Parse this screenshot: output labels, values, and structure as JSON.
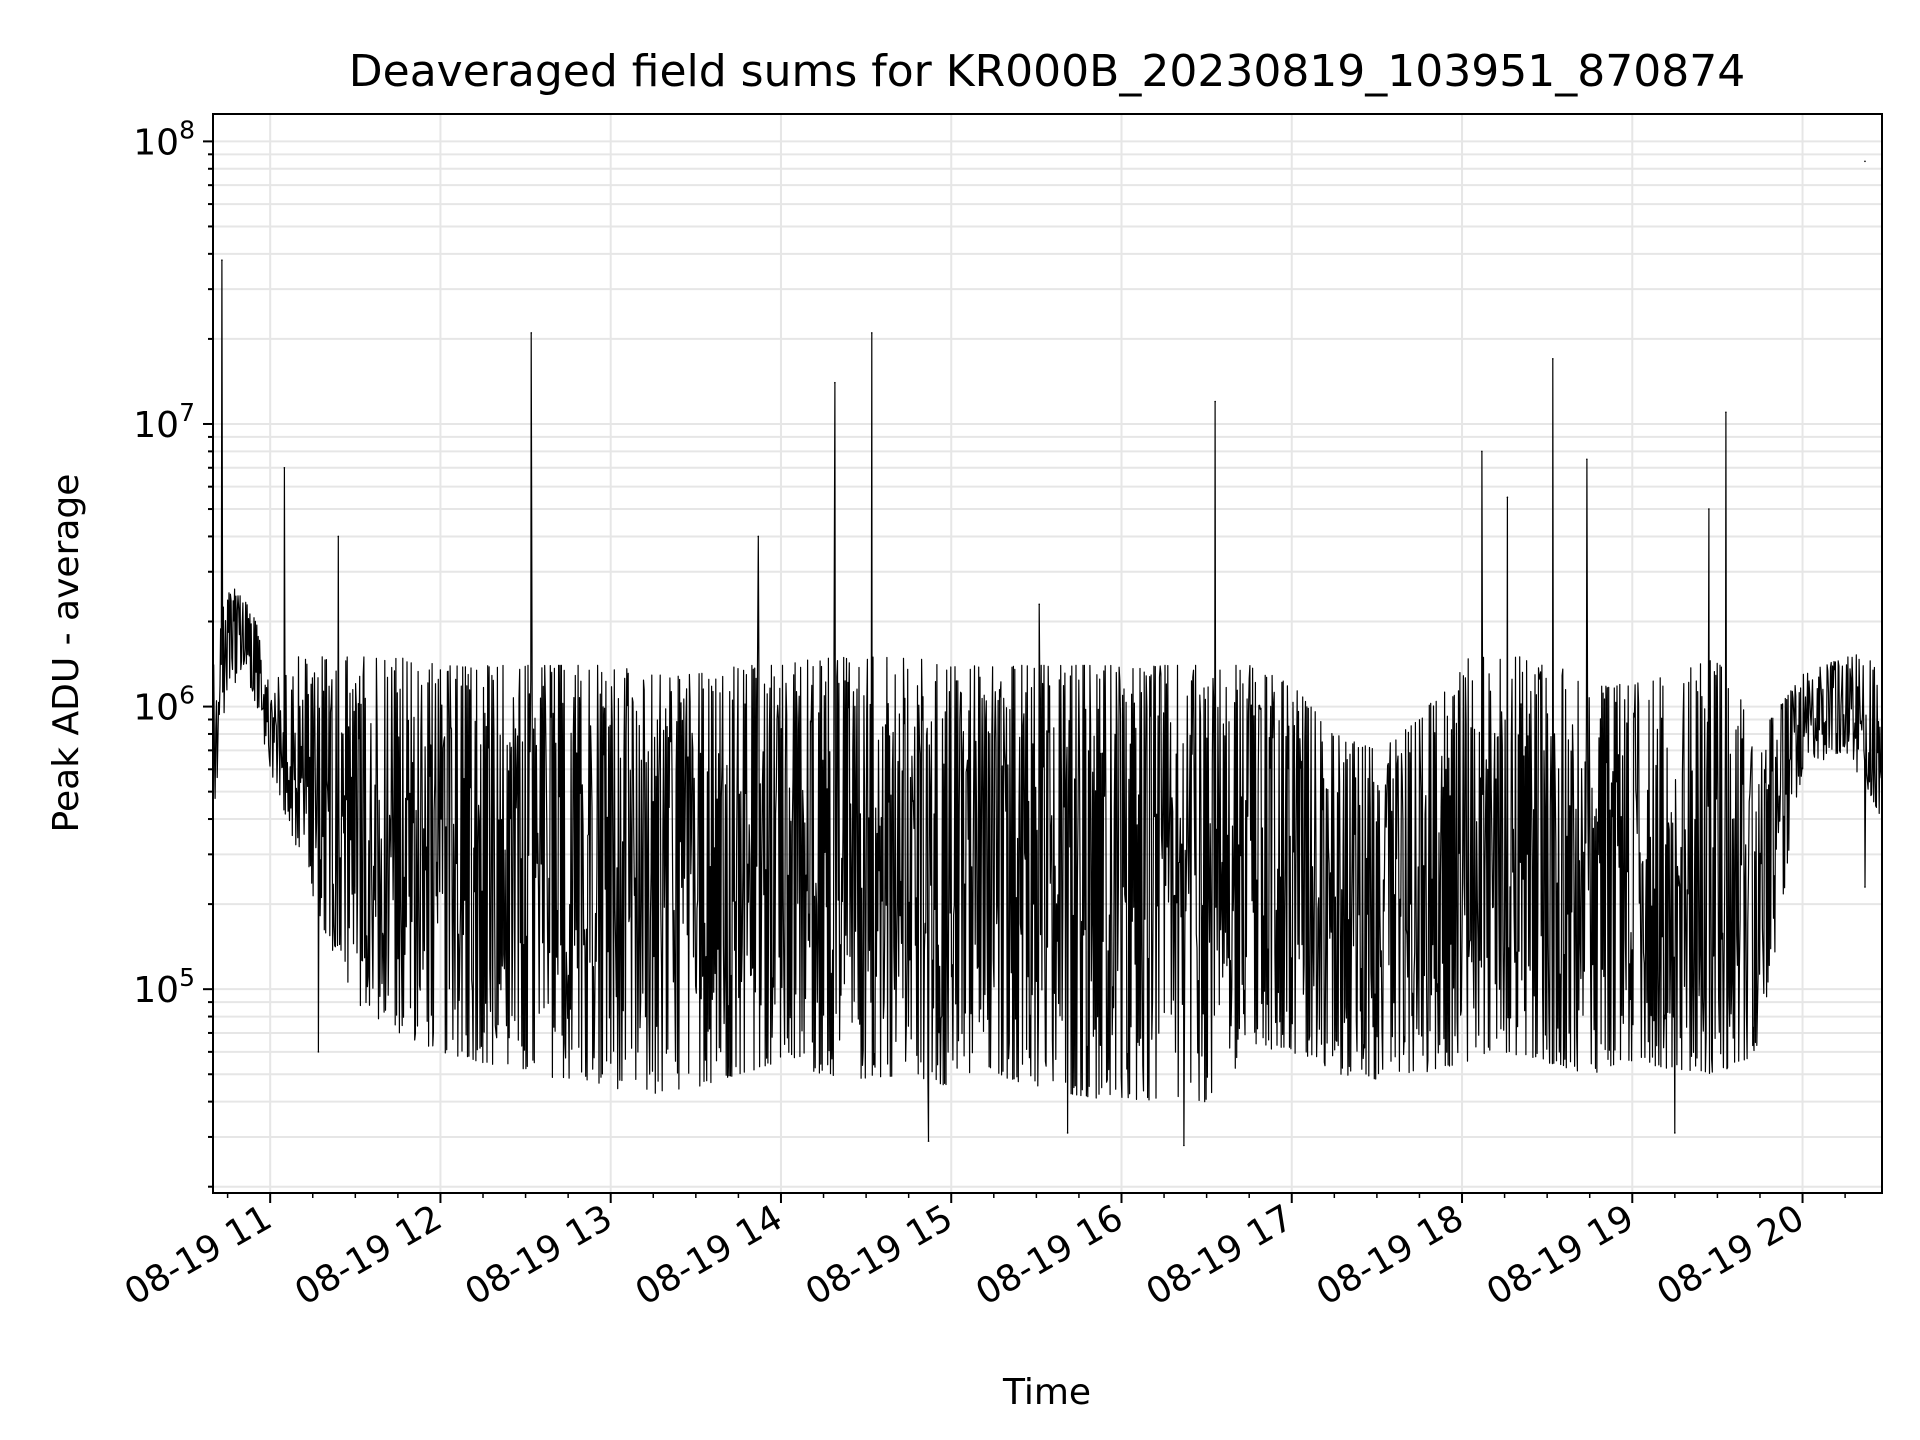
{
  "chart_data": {
    "type": "line",
    "title": "Deaveraged field sums for KR000B_20230819_103951_870874",
    "xlabel": "Time",
    "ylabel": "Peak ADU - average",
    "yscale": "log",
    "ylim": [
      19000,
      125000000
    ],
    "xlim": [
      "2023-08-19 10:39:51",
      "2023-08-19 20:28:00"
    ],
    "grid": "major and minor, light gray",
    "legend": "none",
    "line_color": "#000000",
    "x_ticks": [
      "08-19 11",
      "08-19 12",
      "08-19 13",
      "08-19 14",
      "08-19 15",
      "08-19 16",
      "08-19 17",
      "08-19 18",
      "08-19 19",
      "08-19 20"
    ],
    "y_ticks": [
      {
        "base": "10",
        "exp": "5",
        "value": 100000
      },
      {
        "base": "10",
        "exp": "6",
        "value": 1000000
      },
      {
        "base": "10",
        "exp": "7",
        "value": 10000000
      },
      {
        "base": "10",
        "exp": "8",
        "value": 100000000
      }
    ],
    "series": [
      {
        "x": [
          "2023-08-19 10:39:51",
          "2023-08-19 10:45",
          "2023-08-19 10:50",
          "2023-08-19 10:55",
          "2023-08-19 11:00",
          "2023-08-19 11:10",
          "2023-08-19 11:20",
          "2023-08-19 11:30",
          "2023-08-19 11:45",
          "2023-08-19 12:00",
          "2023-08-19 12:15",
          "2023-08-19 12:30",
          "2023-08-19 12:45",
          "2023-08-19 13:00",
          "2023-08-19 13:15",
          "2023-08-19 13:30",
          "2023-08-19 13:45",
          "2023-08-19 14:00",
          "2023-08-19 14:15",
          "2023-08-19 14:30",
          "2023-08-19 14:45",
          "2023-08-19 15:00",
          "2023-08-19 15:15",
          "2023-08-19 15:30",
          "2023-08-19 15:45",
          "2023-08-19 16:00",
          "2023-08-19 16:15",
          "2023-08-19 16:30",
          "2023-08-19 16:45",
          "2023-08-19 17:00",
          "2023-08-19 17:15",
          "2023-08-19 17:30",
          "2023-08-19 17:45",
          "2023-08-19 18:00",
          "2023-08-19 18:15",
          "2023-08-19 18:30",
          "2023-08-19 18:45",
          "2023-08-19 19:00",
          "2023-08-19 19:15",
          "2023-08-19 19:30",
          "2023-08-19 19:45",
          "2023-08-19 20:00",
          "2023-08-19 20:15",
          "2023-08-19 20:28"
        ],
        "low": [
          400000,
          1200000,
          1200000,
          1000000,
          600000,
          300000,
          150000,
          90000,
          70000,
          60000,
          55000,
          50000,
          48000,
          45000,
          42000,
          45000,
          50000,
          55000,
          50000,
          48000,
          50000,
          45000,
          50000,
          45000,
          42000,
          40000,
          40000,
          40000,
          60000,
          60000,
          50000,
          48000,
          50000,
          55000,
          60000,
          55000,
          50000,
          55000,
          52000,
          50000,
          60000,
          600000,
          700000,
          400000
        ],
        "high": [
          1500000,
          2800000,
          2500000,
          2000000,
          1200000,
          1500000,
          1500000,
          1500000,
          1500000,
          1400000,
          1400000,
          1400000,
          1400000,
          1400000,
          1300000,
          1300000,
          1400000,
          1400000,
          1500000,
          1500000,
          1500000,
          1400000,
          1400000,
          1400000,
          1400000,
          1400000,
          1400000,
          1400000,
          1400000,
          1200000,
          800000,
          700000,
          900000,
          1500000,
          1500000,
          1500000,
          1200000,
          1200000,
          1300000,
          1500000,
          800000,
          1300000,
          1500000,
          1600000
        ],
        "spikes": [
          {
            "x": "2023-08-19 10:43",
            "y": 38000000
          },
          {
            "x": "2023-08-19 11:05",
            "y": 7000000
          },
          {
            "x": "2023-08-19 11:24",
            "y": 4000000
          },
          {
            "x": "2023-08-19 12:32",
            "y": 21000000
          },
          {
            "x": "2023-08-19 13:52",
            "y": 4000000
          },
          {
            "x": "2023-08-19 14:19",
            "y": 14000000
          },
          {
            "x": "2023-08-19 14:32",
            "y": 21000000
          },
          {
            "x": "2023-08-19 15:31",
            "y": 2300000
          },
          {
            "x": "2023-08-19 16:33",
            "y": 12000000
          },
          {
            "x": "2023-08-19 18:07",
            "y": 8000000
          },
          {
            "x": "2023-08-19 18:16",
            "y": 5500000
          },
          {
            "x": "2023-08-19 18:32",
            "y": 17000000
          },
          {
            "x": "2023-08-19 18:44",
            "y": 7500000
          },
          {
            "x": "2023-08-19 19:27",
            "y": 5000000
          },
          {
            "x": "2023-08-19 19:33",
            "y": 11000000
          },
          {
            "x": "2023-08-19 20:22",
            "y": 85000000
          }
        ],
        "dips": [
          {
            "x": "2023-08-19 11:17",
            "y": 60000
          },
          {
            "x": "2023-08-19 14:52",
            "y": 29000
          },
          {
            "x": "2023-08-19 15:41",
            "y": 31000
          },
          {
            "x": "2023-08-19 16:22",
            "y": 28000
          },
          {
            "x": "2023-08-19 19:15",
            "y": 31000
          },
          {
            "x": "2023-08-19 20:22",
            "y": 230000
          }
        ]
      }
    ]
  }
}
